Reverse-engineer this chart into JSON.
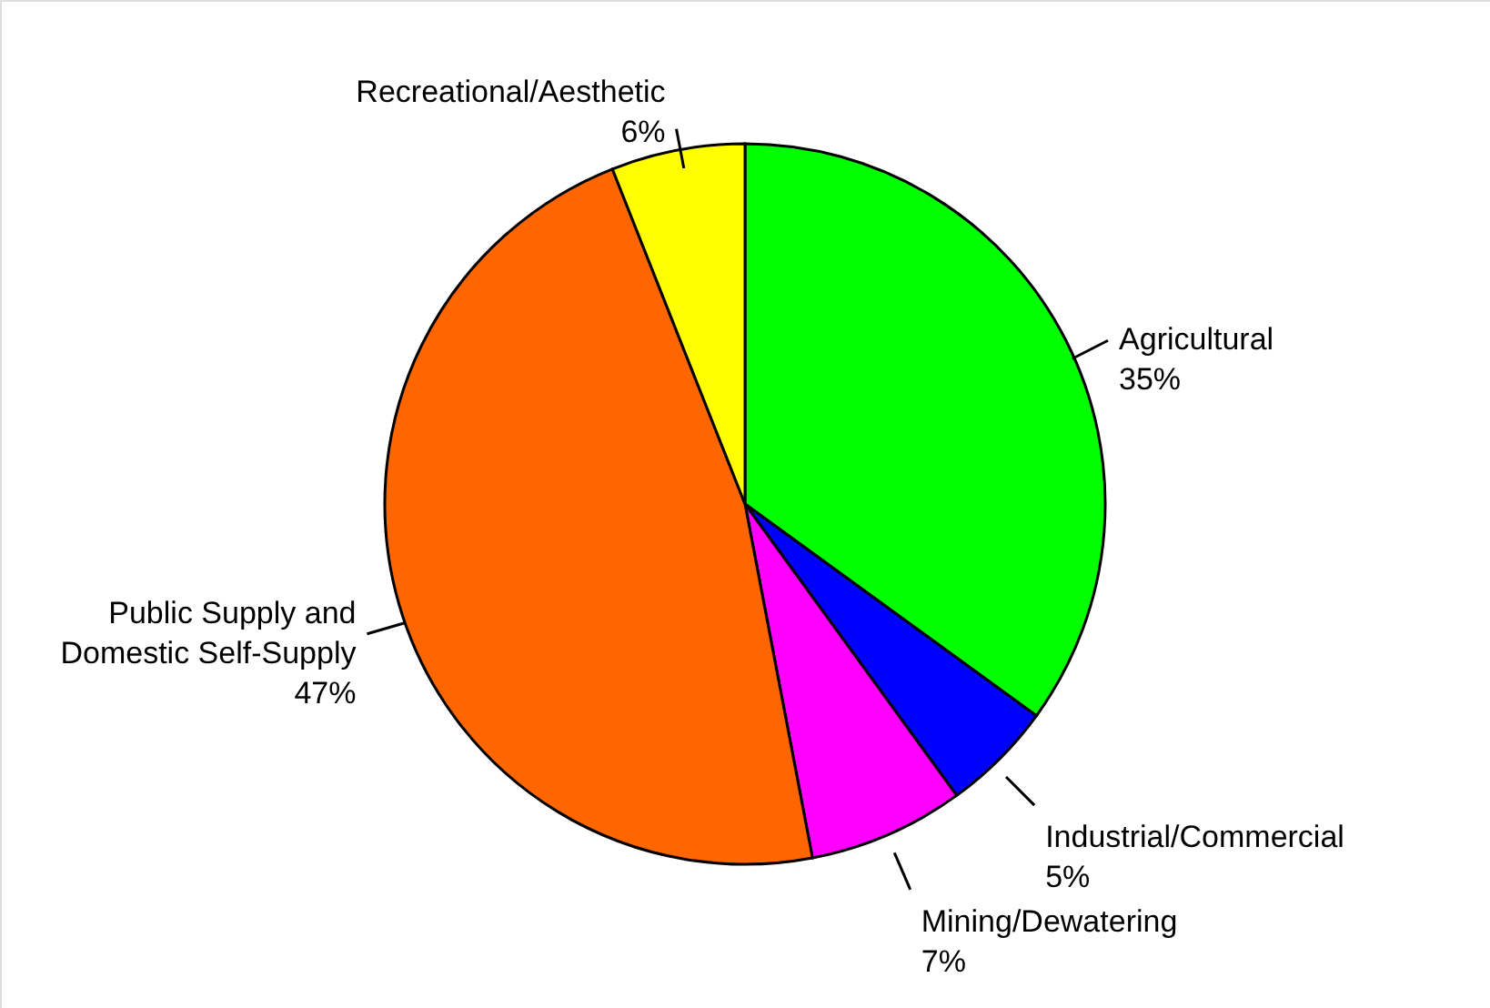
{
  "chart_data": {
    "type": "pie",
    "categories": [
      "Agricultural",
      "Industrial/Commercial",
      "Mining/Dewatering",
      "Public Supply and Domestic Self-Supply",
      "Recreational/Aesthetic"
    ],
    "values": [
      35,
      5,
      7,
      47,
      6
    ],
    "value_labels": [
      "35%",
      "5%",
      "7%",
      "47%",
      "6%"
    ],
    "colors": [
      "#00ff00",
      "#0000ff",
      "#ff00ff",
      "#ff6600",
      "#ffff00"
    ]
  }
}
